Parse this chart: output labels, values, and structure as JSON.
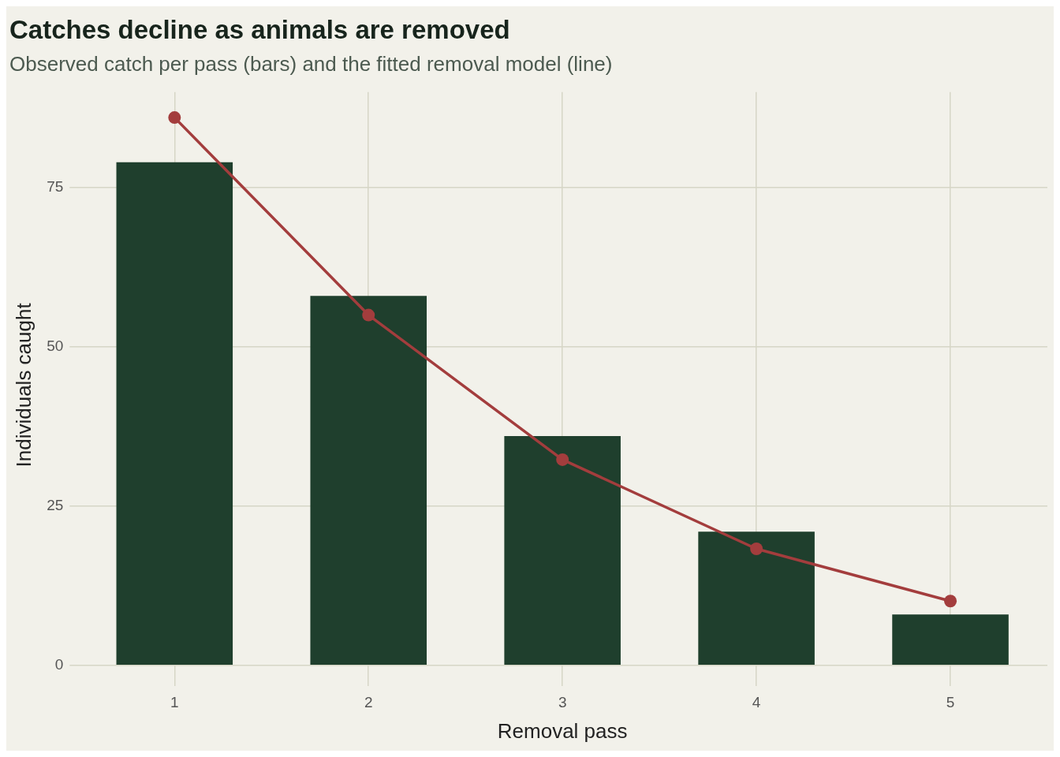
{
  "chart_data": {
    "type": "bar",
    "title": "Catches decline as animals are removed",
    "subtitle": "Observed catch per pass (bars) and the fitted removal model (line)",
    "xlabel": "Removal pass",
    "ylabel": "Individuals caught",
    "categories": [
      "1",
      "2",
      "3",
      "4",
      "5"
    ],
    "series": [
      {
        "color": "#1f3f2d",
        "values": [
          79,
          58,
          36,
          21,
          8
        ]
      },
      {
        "type": "line",
        "color": "#a33d3d",
        "values": [
          86,
          55,
          32.3,
          18.3,
          10.1
        ]
      }
    ],
    "ylim": [
      -2,
      90
    ],
    "yticks": [
      0,
      25,
      50,
      75
    ],
    "grid": true,
    "legend": false,
    "marker": "circle"
  }
}
